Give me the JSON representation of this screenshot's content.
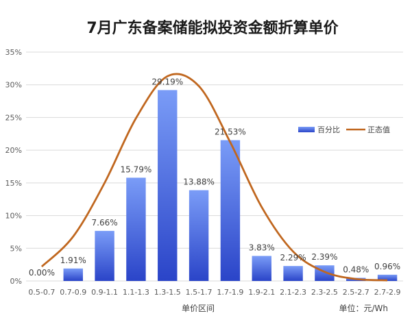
{
  "chart_data": {
    "type": "bar",
    "title": "7月广东备案储能拟投资金额折算单价",
    "xlabel": "单价区间",
    "unit_label": "单位：元/Wh",
    "categories": [
      "0.5-0.7",
      "0.7-0.9",
      "0.9-1.1",
      "1.1-1.3",
      "1.3-1.5",
      "1.5-1.7",
      "1.7-1.9",
      "1.9-2.1",
      "2.1-2.3",
      "2.3-2.5",
      "2.5-2.7",
      "2.7-2.9"
    ],
    "series": [
      {
        "name": "百分比",
        "type": "bar",
        "values": [
          0.0,
          1.91,
          7.66,
          15.79,
          29.19,
          13.88,
          21.53,
          3.83,
          2.29,
          2.39,
          0.48,
          0.96
        ],
        "labels": [
          "0.00%",
          "1.91%",
          "7.66%",
          "15.79%",
          "29.19%",
          "13.88%",
          "21.53%",
          "3.83%",
          "2.29%",
          "2.39%",
          "0.48%",
          "0.96%"
        ]
      },
      {
        "name": "正态值",
        "type": "line",
        "smooth": true,
        "values": [
          2.2,
          6.8,
          15.0,
          24.9,
          31.3,
          29.8,
          21.2,
          11.3,
          4.5,
          1.4,
          0.3,
          0.1
        ]
      }
    ],
    "ylim": [
      0,
      35
    ],
    "yticks": [
      0,
      5,
      10,
      15,
      20,
      25,
      30,
      35
    ],
    "ytick_labels": [
      "0%",
      "5%",
      "10%",
      "15%",
      "20%",
      "25%",
      "30%",
      "35%"
    ],
    "grid": true,
    "legend_position": "right",
    "colors": {
      "bar_top": "#7a9cf7",
      "bar_bottom": "#2a44c8",
      "line": "#c0671f",
      "grid": "#d9d9d9"
    }
  }
}
